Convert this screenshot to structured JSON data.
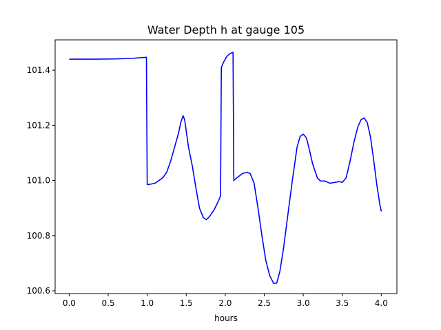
{
  "chart_data": {
    "type": "line",
    "title": "Water Depth h at gauge 105",
    "xlabel": "hours",
    "ylabel": "",
    "xlim": [
      -0.18,
      4.2
    ],
    "ylim": [
      100.59,
      101.51
    ],
    "x_ticks": [
      0.0,
      0.5,
      1.0,
      1.5,
      2.0,
      2.5,
      3.0,
      3.5,
      4.0
    ],
    "x_tick_labels": [
      "0.0",
      "0.5",
      "1.0",
      "1.5",
      "2.0",
      "2.5",
      "3.0",
      "3.5",
      "4.0"
    ],
    "y_ticks": [
      100.6,
      100.8,
      101.0,
      101.2,
      101.4
    ],
    "y_tick_labels": [
      "100.6",
      "100.8",
      "101.0",
      "101.2",
      "101.4"
    ],
    "grid": false,
    "legend": "none",
    "series": [
      {
        "color": "#0000ff",
        "points": [
          [
            0.0,
            101.44
          ],
          [
            0.3,
            101.44
          ],
          [
            0.6,
            101.441
          ],
          [
            0.8,
            101.443
          ],
          [
            0.99,
            101.447
          ],
          [
            1.0,
            100.985
          ],
          [
            1.05,
            100.987
          ],
          [
            1.1,
            100.99
          ],
          [
            1.2,
            101.01
          ],
          [
            1.25,
            101.03
          ],
          [
            1.3,
            101.07
          ],
          [
            1.35,
            101.12
          ],
          [
            1.4,
            101.17
          ],
          [
            1.43,
            101.21
          ],
          [
            1.46,
            101.235
          ],
          [
            1.48,
            101.22
          ],
          [
            1.5,
            101.18
          ],
          [
            1.53,
            101.12
          ],
          [
            1.58,
            101.05
          ],
          [
            1.62,
            100.98
          ],
          [
            1.67,
            100.9
          ],
          [
            1.72,
            100.865
          ],
          [
            1.76,
            100.858
          ],
          [
            1.8,
            100.87
          ],
          [
            1.86,
            100.895
          ],
          [
            1.92,
            100.93
          ],
          [
            1.94,
            100.945
          ],
          [
            1.95,
            101.41
          ],
          [
            1.98,
            101.43
          ],
          [
            2.02,
            101.45
          ],
          [
            2.06,
            101.46
          ],
          [
            2.1,
            101.465
          ],
          [
            2.11,
            101.0
          ],
          [
            2.15,
            101.01
          ],
          [
            2.22,
            101.025
          ],
          [
            2.28,
            101.03
          ],
          [
            2.32,
            101.025
          ],
          [
            2.37,
            100.99
          ],
          [
            2.42,
            100.9
          ],
          [
            2.47,
            100.8
          ],
          [
            2.52,
            100.71
          ],
          [
            2.57,
            100.655
          ],
          [
            2.62,
            100.627
          ],
          [
            2.66,
            100.628
          ],
          [
            2.7,
            100.67
          ],
          [
            2.75,
            100.76
          ],
          [
            2.8,
            100.87
          ],
          [
            2.86,
            101.0
          ],
          [
            2.92,
            101.12
          ],
          [
            2.96,
            101.16
          ],
          [
            3.0,
            101.168
          ],
          [
            3.04,
            101.155
          ],
          [
            3.08,
            101.11
          ],
          [
            3.12,
            101.06
          ],
          [
            3.18,
            101.01
          ],
          [
            3.22,
            100.998
          ],
          [
            3.28,
            100.998
          ],
          [
            3.34,
            100.99
          ],
          [
            3.4,
            100.993
          ],
          [
            3.46,
            100.996
          ],
          [
            3.5,
            100.993
          ],
          [
            3.55,
            101.01
          ],
          [
            3.6,
            101.07
          ],
          [
            3.65,
            101.14
          ],
          [
            3.7,
            101.195
          ],
          [
            3.74,
            101.22
          ],
          [
            3.78,
            101.227
          ],
          [
            3.82,
            101.21
          ],
          [
            3.86,
            101.16
          ],
          [
            3.9,
            101.08
          ],
          [
            3.94,
            100.99
          ],
          [
            3.98,
            100.915
          ],
          [
            4.0,
            100.888
          ]
        ]
      }
    ]
  }
}
